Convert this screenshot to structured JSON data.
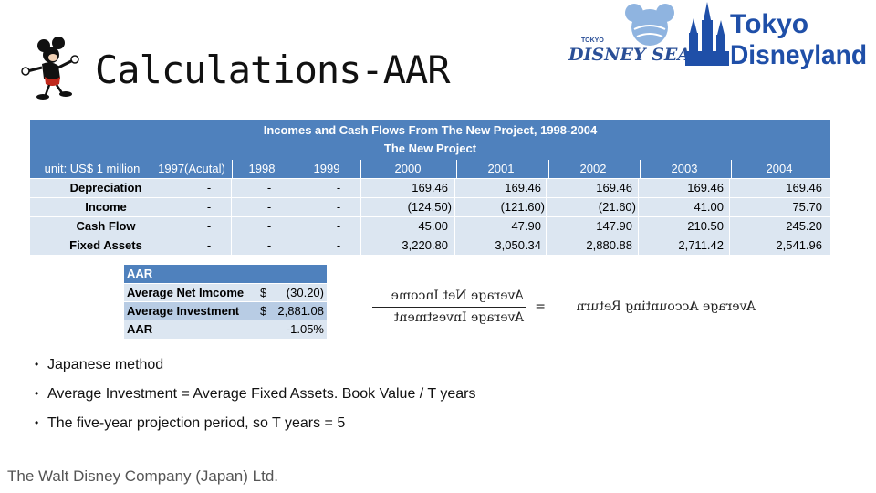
{
  "slide": {
    "title": "Calculations-AAR",
    "logos": {
      "disneysea_small": "TOKYO",
      "disneysea": "DISNEY SEA",
      "disneyland_line1": "Tokyo",
      "disneyland_line2": "Disneyland"
    }
  },
  "main_table": {
    "title": "Incomes and Cash Flows From The New Project, 1998-2004",
    "subtitle": "The New Project",
    "headers": [
      "unit: US$ 1 million",
      "1997(Acutal)",
      "1998",
      "1999",
      "2000",
      "2001",
      "2002",
      "2003",
      "2004"
    ],
    "rows": [
      {
        "label": "Depreciation",
        "values": [
          "-",
          "-",
          "-",
          "169.46",
          "169.46",
          "169.46",
          "169.46",
          "169.46"
        ]
      },
      {
        "label": "Income",
        "values": [
          "-",
          "-",
          "-",
          "(124.50)",
          "(121.60)",
          "(21.60)",
          "41.00",
          "75.70"
        ]
      },
      {
        "label": "Cash Flow",
        "values": [
          "-",
          "-",
          "-",
          "45.00",
          "47.90",
          "147.90",
          "210.50",
          "245.20"
        ]
      },
      {
        "label": "Fixed Assets",
        "values": [
          "-",
          "-",
          "-",
          "3,220.80",
          "3,050.34",
          "2,880.88",
          "2,711.42",
          "2,541.96"
        ]
      }
    ]
  },
  "aar_table": {
    "title": "AAR",
    "rows": [
      {
        "label": "Average Net Imcome",
        "currency": "$",
        "value": "(30.20)"
      },
      {
        "label": "Average Investment",
        "currency": "$",
        "value": "2,881.08"
      },
      {
        "label": "AAR",
        "currency": "",
        "value": "-1.05%"
      }
    ]
  },
  "formula": {
    "lhs": "Average Accounting Return",
    "equals": "=",
    "numerator": "Average Net Income",
    "denominator": "Average Investment"
  },
  "bullets": [
    "Japanese method",
    "Average Investment = Average Fixed Assets. Book Value / T years",
    "The five-year projection period, so T years = 5"
  ],
  "footer": "The Walt Disney Company (Japan) Ltd.",
  "colors": {
    "header_blue": "#4f81bd",
    "row_light": "#dce6f1",
    "row_mid": "#b8cce4",
    "logo_blue": "#1f4fa8"
  }
}
